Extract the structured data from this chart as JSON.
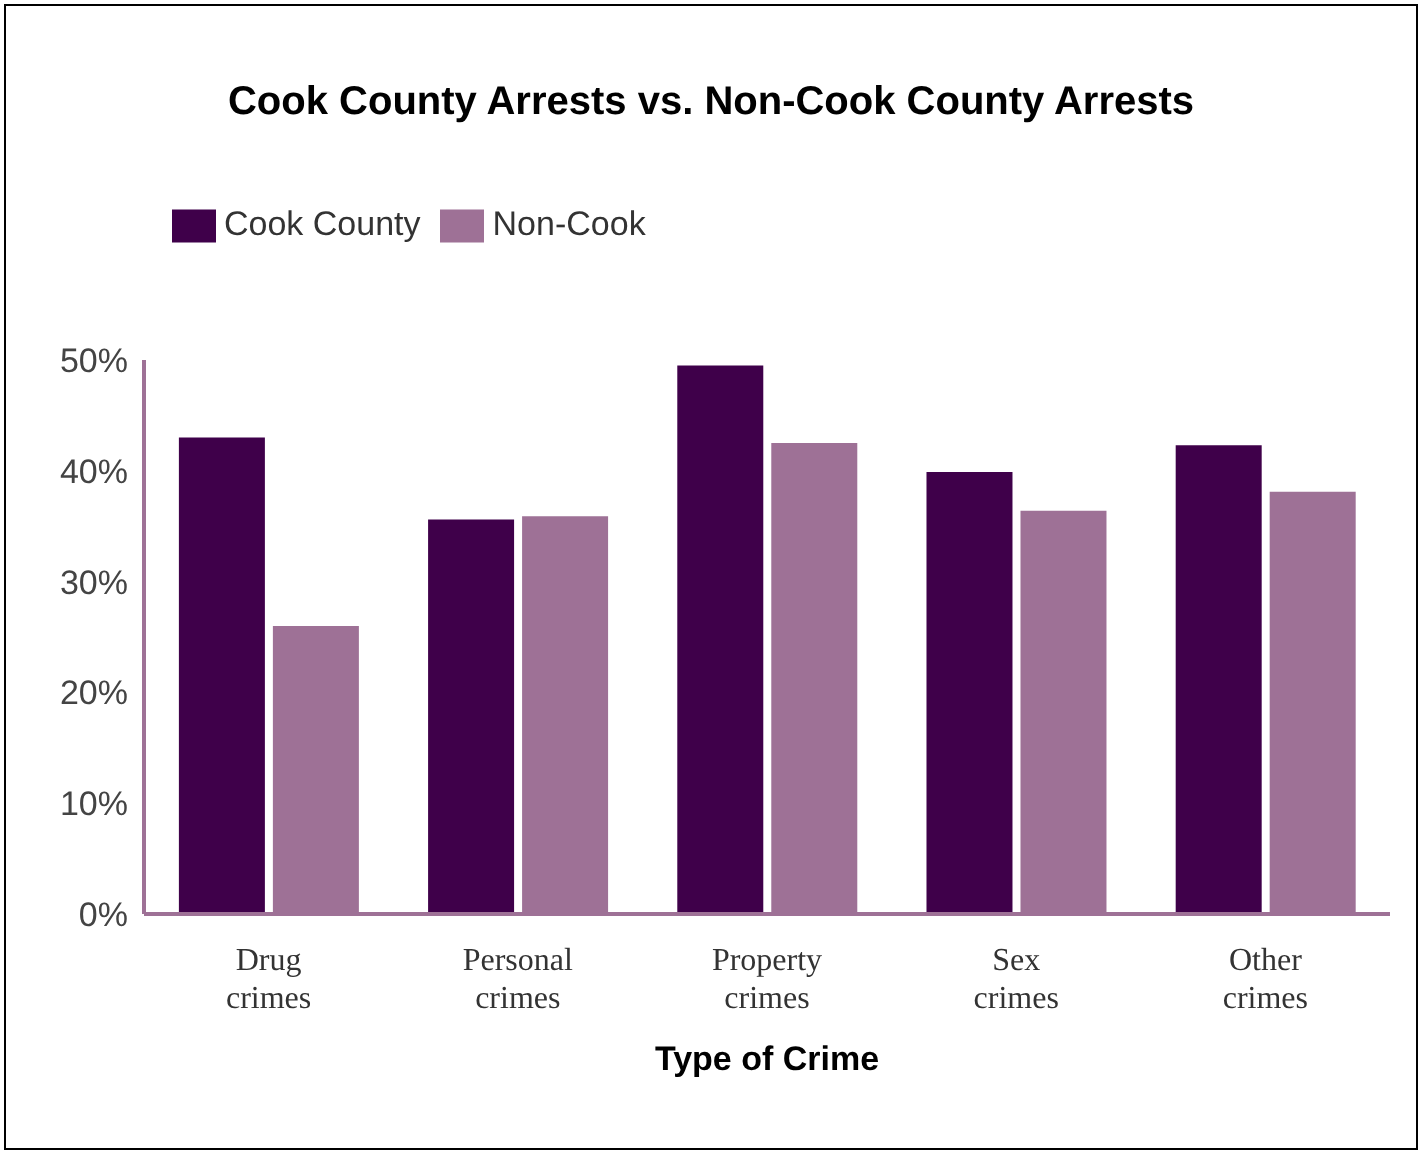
{
  "chart_data": {
    "type": "bar",
    "title": "Cook County Arrests vs. Non-Cook County Arrests",
    "xlabel": "Type of Crime",
    "categories": [
      "Drug crimes",
      "Personal crimes",
      "Property crimes",
      "Sex crimes",
      "Other crimes"
    ],
    "series": [
      {
        "name": "Cook County",
        "color": "#3f004a",
        "values": [
          43,
          35.6,
          49.5,
          39.9,
          42.3
        ]
      },
      {
        "name": "Non-Cook",
        "color": "#9e7196",
        "values": [
          26,
          35.9,
          42.5,
          36.4,
          38.1
        ]
      }
    ],
    "ylim": [
      0,
      50
    ],
    "yticks": [
      {
        "value": 0,
        "label": "0%"
      },
      {
        "value": 10,
        "label": "10%"
      },
      {
        "value": 20,
        "label": "20%"
      },
      {
        "value": 30,
        "label": "30%"
      },
      {
        "value": 40,
        "label": "40%"
      },
      {
        "value": 50,
        "label": "50%"
      }
    ],
    "grid": false,
    "legend": "top left"
  }
}
